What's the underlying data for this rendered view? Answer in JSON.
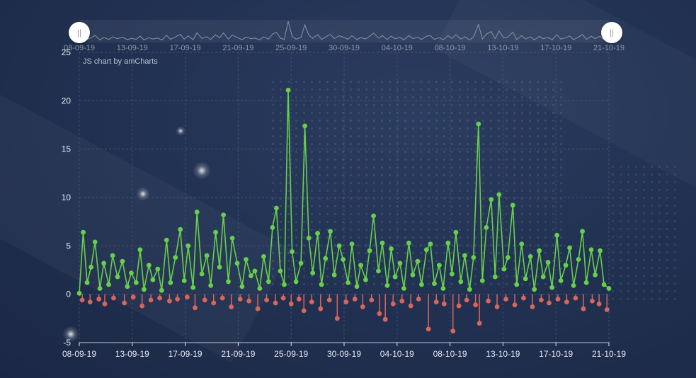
{
  "credit": "JS chart by amCharts",
  "scrollbar": {
    "left_handle_icon": "grip-icon",
    "right_handle_icon": "grip-icon"
  },
  "colors": {
    "positive": "#67d04a",
    "negative": "#d9655b",
    "grid": "#54627e",
    "label": "#e6ebf2",
    "scrollbar_label": "#8e98aa"
  },
  "chart_data": {
    "type": "line",
    "x_tick_labels": [
      "08-09-19",
      "13-09-19",
      "17-09-19",
      "21-09-19",
      "25-09-19",
      "30-09-19",
      "04-10-19",
      "08-10-19",
      "13-10-19",
      "17-10-19",
      "21-10-19"
    ],
    "y_tick_labels": [
      "25",
      "20",
      "15",
      "10",
      "5",
      "0",
      "-5"
    ],
    "ylim": [
      -5,
      25
    ],
    "xlim": [
      "2019-09-08",
      "2019-10-21"
    ],
    "grid": true,
    "series": [
      {
        "color": "#67d04a",
        "points": [
          [
            0,
            0.1
          ],
          [
            0.4,
            6.4
          ],
          [
            0.8,
            1.2
          ],
          [
            1.2,
            2.8
          ],
          [
            1.6,
            5.4
          ],
          [
            2.1,
            0.6
          ],
          [
            2.5,
            3.2
          ],
          [
            3.0,
            1.0
          ],
          [
            3.4,
            4.0
          ],
          [
            3.9,
            1.8
          ],
          [
            4.4,
            3.4
          ],
          [
            4.9,
            0.8
          ],
          [
            5.3,
            2.2
          ],
          [
            5.8,
            1.2
          ],
          [
            6.2,
            4.6
          ],
          [
            6.6,
            0.5
          ],
          [
            7.1,
            3.0
          ],
          [
            7.5,
            1.5
          ],
          [
            8.0,
            2.6
          ],
          [
            8.4,
            0.4
          ],
          [
            8.9,
            5.6
          ],
          [
            9.3,
            1.2
          ],
          [
            9.8,
            3.8
          ],
          [
            10.3,
            6.7
          ],
          [
            10.7,
            1.4
          ],
          [
            11.1,
            5.0
          ],
          [
            11.6,
            0.7
          ],
          [
            12.0,
            8.5
          ],
          [
            12.5,
            2.1
          ],
          [
            13.0,
            4.0
          ],
          [
            13.4,
            0.9
          ],
          [
            13.9,
            6.4
          ],
          [
            14.3,
            2.8
          ],
          [
            14.7,
            8.2
          ],
          [
            15.2,
            1.3
          ],
          [
            15.6,
            5.8
          ],
          [
            16.1,
            3.2
          ],
          [
            16.6,
            0.8
          ],
          [
            17.0,
            3.6
          ],
          [
            17.5,
            1.9
          ],
          [
            17.9,
            2.4
          ],
          [
            18.4,
            0.6
          ],
          [
            18.8,
            3.9
          ],
          [
            19.3,
            1.3
          ],
          [
            19.7,
            6.9
          ],
          [
            20.1,
            8.9
          ],
          [
            20.5,
            2.4
          ],
          [
            20.9,
            1.0
          ],
          [
            21.3,
            21.1
          ],
          [
            21.7,
            4.4
          ],
          [
            22.1,
            1.3
          ],
          [
            22.6,
            3.2
          ],
          [
            23.0,
            17.4
          ],
          [
            23.4,
            5.8
          ],
          [
            23.8,
            2.2
          ],
          [
            24.3,
            6.3
          ],
          [
            24.7,
            1.0
          ],
          [
            25.1,
            3.7
          ],
          [
            25.6,
            6.5
          ],
          [
            26.0,
            2.0
          ],
          [
            26.5,
            5.0
          ],
          [
            26.9,
            3.6
          ],
          [
            27.4,
            1.2
          ],
          [
            27.8,
            5.2
          ],
          [
            28.3,
            0.8
          ],
          [
            28.7,
            3.0
          ],
          [
            29.2,
            1.5
          ],
          [
            29.6,
            4.5
          ],
          [
            30.0,
            8.1
          ],
          [
            30.5,
            2.4
          ],
          [
            30.9,
            5.3
          ],
          [
            31.4,
            0.9
          ],
          [
            31.8,
            4.7
          ],
          [
            32.2,
            1.8
          ],
          [
            32.7,
            3.2
          ],
          [
            33.1,
            0.6
          ],
          [
            33.6,
            5.3
          ],
          [
            34.0,
            2.0
          ],
          [
            34.5,
            3.4
          ],
          [
            34.9,
            1.0
          ],
          [
            35.4,
            4.6
          ],
          [
            35.8,
            5.2
          ],
          [
            36.2,
            1.1
          ],
          [
            36.7,
            3.0
          ],
          [
            37.1,
            0.6
          ],
          [
            37.6,
            5.3
          ],
          [
            38.0,
            2.1
          ],
          [
            38.4,
            6.4
          ],
          [
            38.9,
            1.3
          ],
          [
            39.3,
            4.0
          ],
          [
            39.8,
            0.5
          ],
          [
            40.2,
            3.8
          ],
          [
            40.7,
            17.6
          ],
          [
            41.1,
            1.4
          ],
          [
            41.5,
            6.9
          ],
          [
            42.0,
            9.8
          ],
          [
            42.4,
            1.8
          ],
          [
            42.8,
            10.3
          ],
          [
            43.3,
            2.6
          ],
          [
            43.7,
            3.8
          ],
          [
            44.2,
            9.2
          ],
          [
            44.6,
            1.0
          ],
          [
            45.1,
            5.2
          ],
          [
            45.5,
            1.6
          ],
          [
            46.0,
            3.9
          ],
          [
            46.4,
            0.5
          ],
          [
            46.9,
            4.5
          ],
          [
            47.3,
            1.8
          ],
          [
            47.8,
            3.3
          ],
          [
            48.2,
            0.7
          ],
          [
            48.7,
            6.1
          ],
          [
            49.1,
            1.4
          ],
          [
            49.6,
            3.0
          ],
          [
            50.0,
            4.8
          ],
          [
            50.4,
            0.9
          ],
          [
            50.9,
            3.6
          ],
          [
            51.3,
            6.5
          ],
          [
            51.7,
            1.2
          ],
          [
            52.2,
            4.6
          ],
          [
            52.6,
            2.0
          ],
          [
            53.1,
            4.5
          ],
          [
            53.5,
            1.0
          ],
          [
            54.0,
            0.6
          ]
        ]
      },
      {
        "color": "#d9655b",
        "points": [
          [
            0.3,
            -0.6
          ],
          [
            1.1,
            -0.8
          ],
          [
            2.0,
            -0.5
          ],
          [
            2.6,
            -1.0
          ],
          [
            3.5,
            -0.4
          ],
          [
            4.6,
            -0.9
          ],
          [
            5.5,
            -0.3
          ],
          [
            6.4,
            -1.2
          ],
          [
            7.3,
            -0.6
          ],
          [
            8.2,
            -0.4
          ],
          [
            9.2,
            -0.7
          ],
          [
            10.0,
            -0.5
          ],
          [
            11.0,
            -0.3
          ],
          [
            11.8,
            -1.4
          ],
          [
            12.8,
            -0.6
          ],
          [
            13.7,
            -0.9
          ],
          [
            14.6,
            -0.4
          ],
          [
            15.5,
            -1.3
          ],
          [
            16.4,
            -0.5
          ],
          [
            17.3,
            -0.7
          ],
          [
            18.2,
            -1.5
          ],
          [
            19.1,
            -0.6
          ],
          [
            20.0,
            -0.9
          ],
          [
            20.8,
            -0.4
          ],
          [
            21.6,
            -1.0
          ],
          [
            22.4,
            -0.5
          ],
          [
            22.9,
            -1.7
          ],
          [
            23.7,
            -0.8
          ],
          [
            24.6,
            -1.5
          ],
          [
            25.5,
            -0.6
          ],
          [
            26.3,
            -2.5
          ],
          [
            27.2,
            -0.8
          ],
          [
            28.1,
            -0.5
          ],
          [
            28.9,
            -1.3
          ],
          [
            29.8,
            -0.6
          ],
          [
            30.6,
            -2.0
          ],
          [
            31.2,
            -2.6
          ],
          [
            32.0,
            -1.0
          ],
          [
            32.9,
            -0.7
          ],
          [
            33.8,
            -1.2
          ],
          [
            34.6,
            -0.5
          ],
          [
            35.6,
            -3.6
          ],
          [
            36.4,
            -0.8
          ],
          [
            37.2,
            -1.0
          ],
          [
            38.1,
            -3.8
          ],
          [
            38.7,
            -1.2
          ],
          [
            39.5,
            -0.6
          ],
          [
            40.4,
            -1.1
          ],
          [
            40.8,
            -3.0
          ],
          [
            41.7,
            -0.7
          ],
          [
            42.6,
            -1.3
          ],
          [
            43.5,
            -0.5
          ],
          [
            44.4,
            -1.1
          ],
          [
            45.3,
            -0.4
          ],
          [
            46.2,
            -1.3
          ],
          [
            47.1,
            -0.6
          ],
          [
            47.9,
            -0.9
          ],
          [
            48.8,
            -0.5
          ],
          [
            49.7,
            -0.8
          ],
          [
            50.6,
            -0.4
          ],
          [
            51.4,
            -1.5
          ],
          [
            52.3,
            -0.7
          ],
          [
            53.0,
            -1.0
          ],
          [
            53.8,
            -1.6
          ]
        ]
      }
    ]
  }
}
